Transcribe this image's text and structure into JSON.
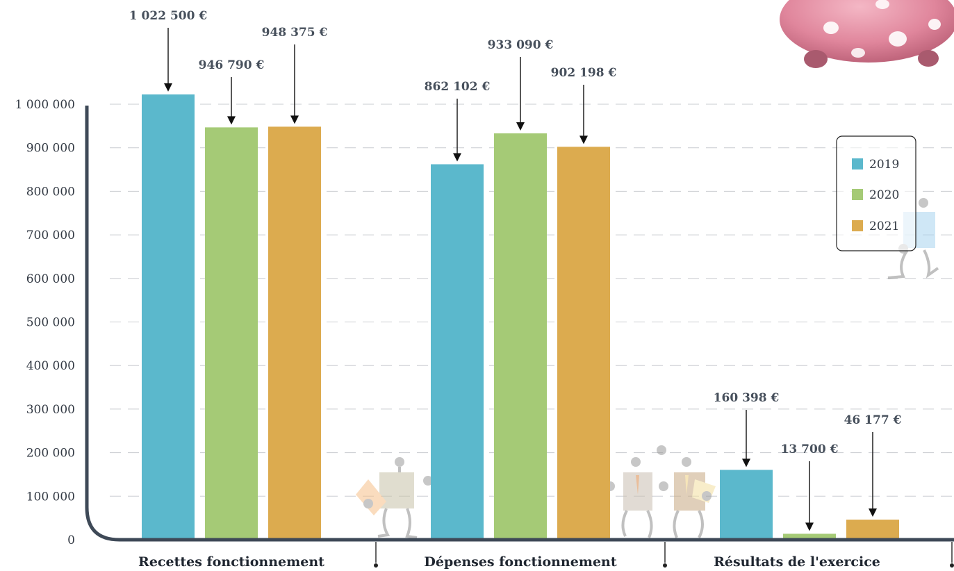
{
  "chart_data": {
    "type": "bar",
    "categories": [
      "Recettes fonctionnement",
      "Dépenses fonctionnement",
      "Résultats de l'exercice"
    ],
    "series": [
      {
        "name": "2019",
        "color": "#5bb8cc",
        "values": [
          1022500,
          862102,
          160398
        ],
        "labels": [
          "1 022 500 €",
          "862 102 €",
          "160 398 €"
        ]
      },
      {
        "name": "2020",
        "color": "#a5ca76",
        "values": [
          946790,
          933090,
          13700
        ],
        "labels": [
          "946 790 €",
          "933 090 €",
          "13 700 €"
        ]
      },
      {
        "name": "2021",
        "color": "#dcab4f",
        "values": [
          948375,
          902198,
          46177
        ],
        "labels": [
          "948 375 €",
          "902 198 €",
          "46 177 €"
        ]
      }
    ],
    "yticks": [
      "0",
      "100 000",
      "200 000",
      "300 000",
      "400 000",
      "500 000",
      "600 000",
      "700 000",
      "800 000",
      "900 000",
      "1 000 000"
    ],
    "ylim": [
      0,
      1000000
    ],
    "grid": true,
    "legend": "right",
    "axis_color": "#3e4957",
    "grid_color": "#c9ccd0"
  }
}
